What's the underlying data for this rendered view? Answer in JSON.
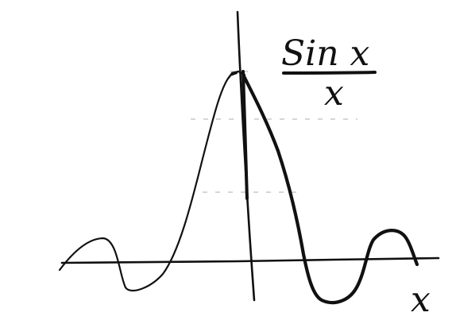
{
  "figure": {
    "label_numerator": "Sin x",
    "label_denominator": "x",
    "x_axis_label": "x",
    "ink_color": "#111111",
    "guide_color": "#bdbdbd"
  }
}
